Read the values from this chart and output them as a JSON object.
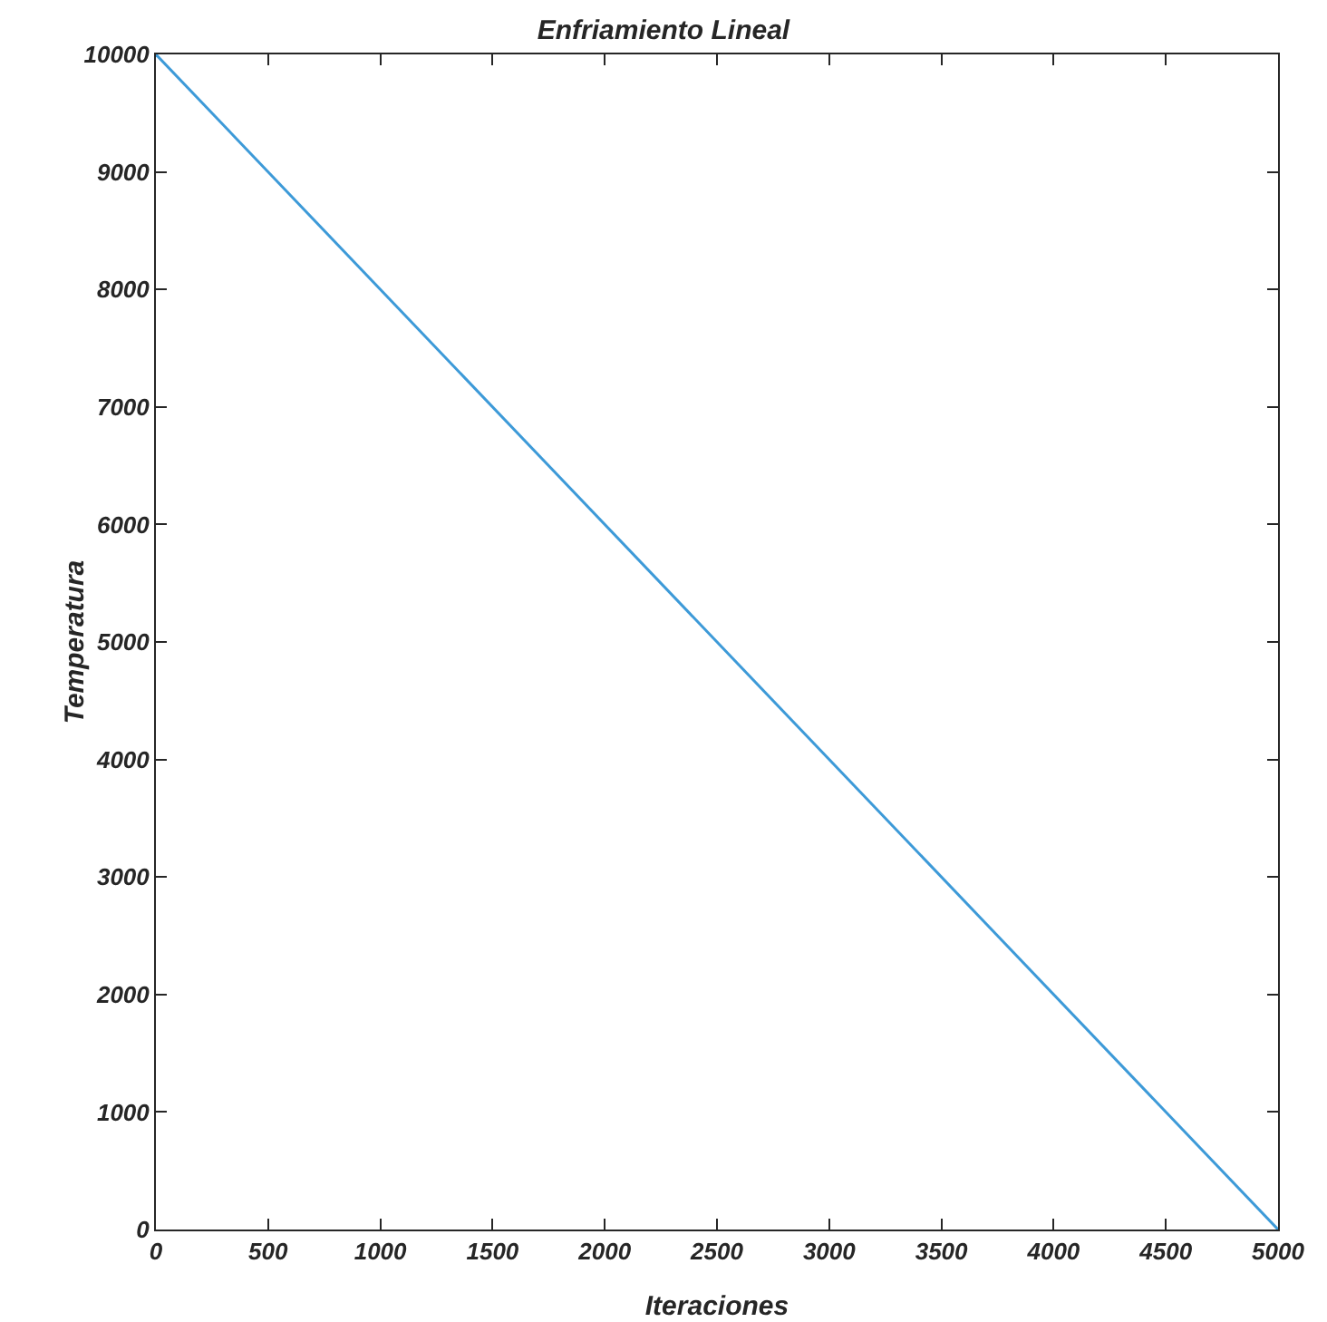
{
  "chart_data": {
    "type": "line",
    "title": "Enfriamiento Lineal",
    "xlabel": "Iteraciones",
    "ylabel": "Temperatura",
    "x": [
      0,
      5000
    ],
    "series": [
      {
        "color": "#3d9ad8",
        "values": [
          10000,
          0
        ]
      }
    ],
    "xlim": [
      0,
      5000
    ],
    "xticks": [
      0,
      500,
      1000,
      1500,
      2000,
      2500,
      3000,
      3500,
      4000,
      4500,
      5000
    ],
    "ylim": [
      0,
      10000
    ],
    "yticks": [
      0,
      1000,
      2000,
      3000,
      4000,
      5000,
      6000,
      7000,
      8000,
      9000,
      10000
    ],
    "grid": false,
    "marker": "none",
    "line_style": "solid"
  }
}
